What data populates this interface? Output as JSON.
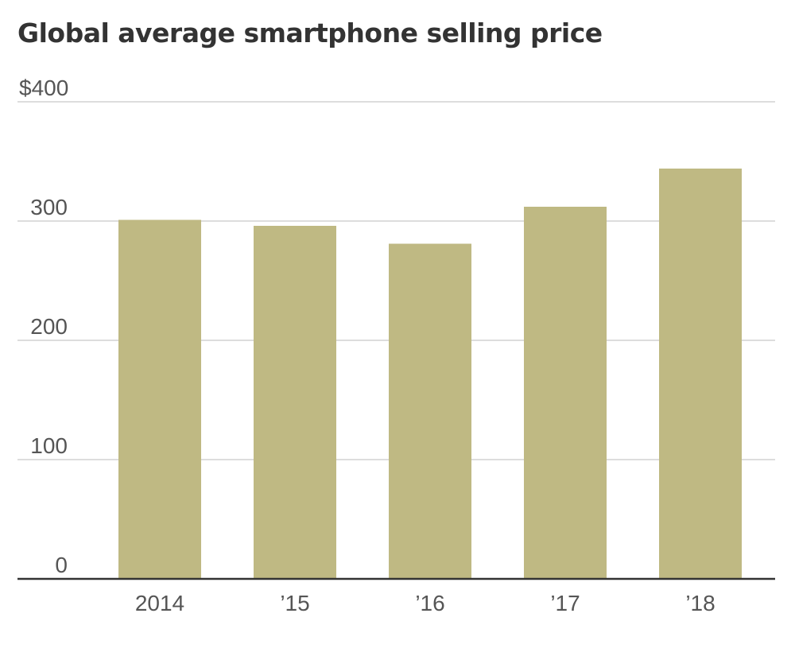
{
  "chart_data": {
    "type": "bar",
    "title": "Global average smartphone selling price",
    "xlabel": "",
    "ylabel": "",
    "categories": [
      "2014",
      "’15",
      "’16",
      "’17",
      "’18"
    ],
    "values": [
      301,
      296,
      281,
      312,
      344
    ],
    "ylim": [
      0,
      400
    ],
    "yticks": [
      0,
      100,
      200,
      300,
      400
    ],
    "ytick_labels": [
      "0",
      "100",
      "200",
      "300",
      "$400"
    ],
    "grid": true,
    "legend": "none",
    "bar_color": "#bfb983"
  }
}
